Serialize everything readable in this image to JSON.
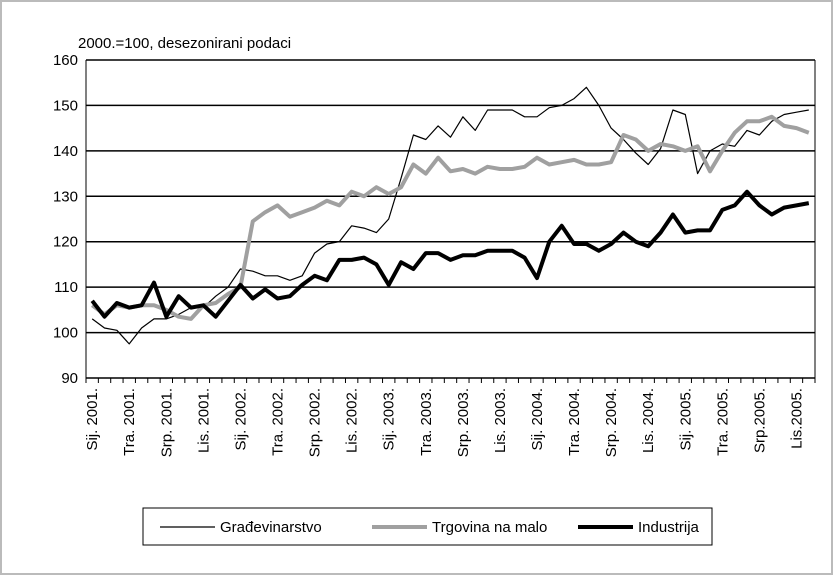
{
  "chart_data": {
    "type": "line",
    "subtitle": "2000.=100, desezonirani podaci",
    "categories": [
      "Sij. 2001.",
      null,
      null,
      "Tra. 2001.",
      null,
      null,
      "Srp. 2001.",
      null,
      null,
      "Lis. 2001.",
      null,
      null,
      "Sij. 2002.",
      null,
      null,
      "Tra. 2002.",
      null,
      null,
      "Srp. 2002.",
      null,
      null,
      "Lis. 2002.",
      null,
      null,
      "Sij. 2003.",
      null,
      null,
      "Tra. 2003.",
      null,
      null,
      "Srp. 2003.",
      null,
      null,
      "Lis. 2003.",
      null,
      null,
      "Sij. 2004.",
      null,
      null,
      "Tra. 2004.",
      null,
      null,
      "Srp. 2004.",
      null,
      null,
      "Lis. 2004.",
      null,
      null,
      "Sij. 2005.",
      null,
      null,
      "Tra. 2005.",
      null,
      null,
      "Srp.2005.",
      null,
      null,
      "Lis.2005.",
      null
    ],
    "series": [
      {
        "name": "Građevinarstvo",
        "color": "#000000",
        "width": 1.2,
        "values": [
          103,
          101,
          100.5,
          97.5,
          101,
          103,
          103,
          104,
          105.5,
          105.5,
          108,
          110,
          114,
          113.5,
          112.5,
          112.5,
          111.5,
          112.5,
          117.5,
          119.5,
          120,
          123.5,
          123,
          122,
          125,
          134,
          143.5,
          142.5,
          145.5,
          143,
          147.5,
          144.5,
          149,
          149,
          149,
          147.5,
          147.5,
          149.5,
          150,
          151.5,
          154,
          150,
          145,
          142.5,
          139.5,
          137,
          140.5,
          149,
          148,
          135,
          140,
          141.5,
          141,
          144.5,
          143.5,
          146.5,
          148,
          148.5,
          149
        ]
      },
      {
        "name": "Trgovina na malo",
        "color": "#a0a0a0",
        "width": 4,
        "values": [
          106,
          104,
          106,
          105.5,
          106,
          106,
          105,
          103.5,
          103,
          106,
          106.5,
          108.5,
          110,
          124.5,
          126.5,
          128,
          125.5,
          126.5,
          127.5,
          129,
          128,
          131,
          130,
          132,
          130.5,
          132,
          137,
          135,
          138.5,
          135.5,
          136,
          135,
          136.5,
          136,
          136,
          136.5,
          138.5,
          137,
          137.5,
          138,
          137,
          137,
          137.5,
          143.5,
          142.5,
          140,
          141.5,
          141,
          140,
          141,
          135.5,
          140,
          144,
          146.5,
          146.5,
          147.5,
          145.5,
          145,
          144
        ]
      },
      {
        "name": "Industrija",
        "color": "#000000",
        "width": 4,
        "values": [
          107,
          103.5,
          106.5,
          105.5,
          106,
          111,
          103.5,
          108,
          105.5,
          106,
          103.5,
          107,
          110.5,
          107.5,
          109.5,
          107.5,
          108,
          110.5,
          112.5,
          111.5,
          116,
          116,
          116.5,
          115,
          110.5,
          115.5,
          114,
          117.5,
          117.5,
          116,
          117,
          117,
          118,
          118,
          118,
          116.5,
          112,
          120,
          123.5,
          119.5,
          119.5,
          118,
          119.5,
          122,
          120,
          119,
          122,
          126,
          122,
          122.5,
          122.5,
          127,
          128,
          131,
          128,
          126,
          127.5,
          128,
          128.5
        ]
      }
    ],
    "ylim": [
      90,
      160
    ],
    "yticks": [
      90,
      100,
      110,
      120,
      130,
      140,
      150,
      160
    ],
    "grid": true,
    "legend": "bottom"
  }
}
